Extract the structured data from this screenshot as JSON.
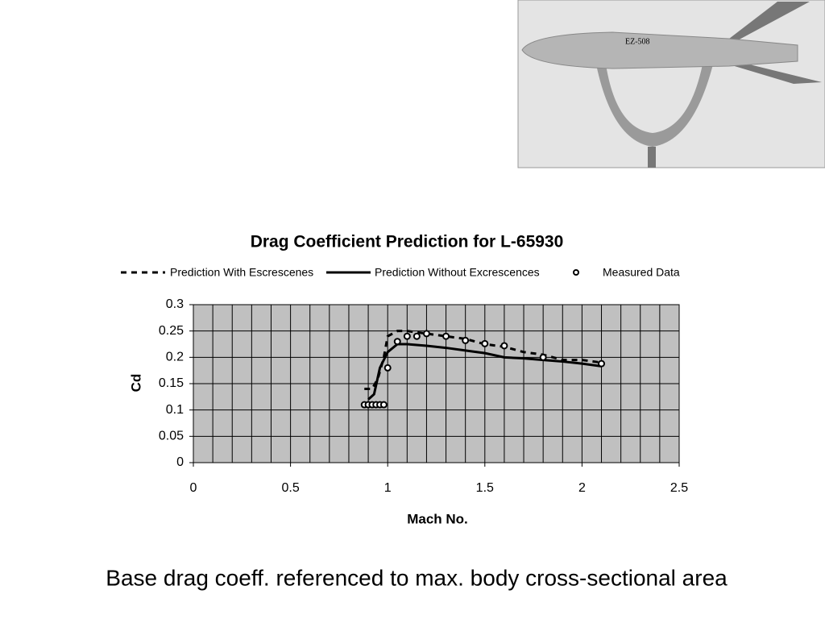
{
  "photo": {
    "label": "EZ-508"
  },
  "chart_data": {
    "type": "line",
    "title": "Drag Coefficient Prediction for L-65930",
    "x_label": "Mach No.",
    "y_label": "Cd",
    "xlim": [
      0,
      2.5
    ],
    "ylim": [
      0,
      0.3
    ],
    "xticks": [
      0,
      0.5,
      1,
      1.5,
      2,
      2.5
    ],
    "yticks": [
      0,
      0.05,
      0.1,
      0.15,
      0.2,
      0.25,
      0.3
    ],
    "xgrid": [
      0,
      0.1,
      0.2,
      0.3,
      0.4,
      0.5,
      0.6,
      0.7,
      0.8,
      0.9,
      1,
      1.1,
      1.2,
      1.3,
      1.4,
      1.5,
      1.6,
      1.7,
      1.8,
      1.9,
      2,
      2.1,
      2.2,
      2.3,
      2.4,
      2.5
    ],
    "grid": true,
    "series": [
      {
        "name": "Prediction With Escrescenes",
        "color": "#000000",
        "style": "dashed",
        "x": [
          0.88,
          0.92,
          0.95,
          0.98,
          1.0,
          1.05,
          1.1,
          1.2,
          1.3,
          1.4,
          1.5,
          1.6,
          1.7,
          1.8,
          1.9,
          2.0,
          2.1
        ],
        "values": [
          0.14,
          0.14,
          0.16,
          0.2,
          0.24,
          0.25,
          0.25,
          0.245,
          0.24,
          0.235,
          0.225,
          0.22,
          0.21,
          0.205,
          0.195,
          0.195,
          0.19
        ]
      },
      {
        "name": "Prediction Without Excrescences",
        "color": "#000000",
        "style": "solid",
        "x": [
          0.9,
          0.93,
          0.96,
          1.0,
          1.05,
          1.1,
          1.2,
          1.3,
          1.4,
          1.5,
          1.6,
          1.7,
          1.8,
          1.9,
          2.0,
          2.1
        ],
        "values": [
          0.12,
          0.13,
          0.18,
          0.21,
          0.225,
          0.225,
          0.222,
          0.218,
          0.213,
          0.208,
          0.2,
          0.198,
          0.195,
          0.192,
          0.188,
          0.183
        ]
      },
      {
        "name": "Measured Data",
        "color": "#000000",
        "style": "markers",
        "x": [
          0.88,
          0.9,
          0.92,
          0.94,
          0.96,
          0.98,
          1.0,
          1.05,
          1.1,
          1.15,
          1.2,
          1.3,
          1.4,
          1.5,
          1.6,
          1.8,
          2.1
        ],
        "values": [
          0.11,
          0.11,
          0.11,
          0.11,
          0.11,
          0.11,
          0.18,
          0.23,
          0.24,
          0.24,
          0.245,
          0.24,
          0.232,
          0.226,
          0.222,
          0.2,
          0.188
        ]
      }
    ]
  },
  "caption": "Base drag coeff. referenced to max. body cross-sectional area"
}
